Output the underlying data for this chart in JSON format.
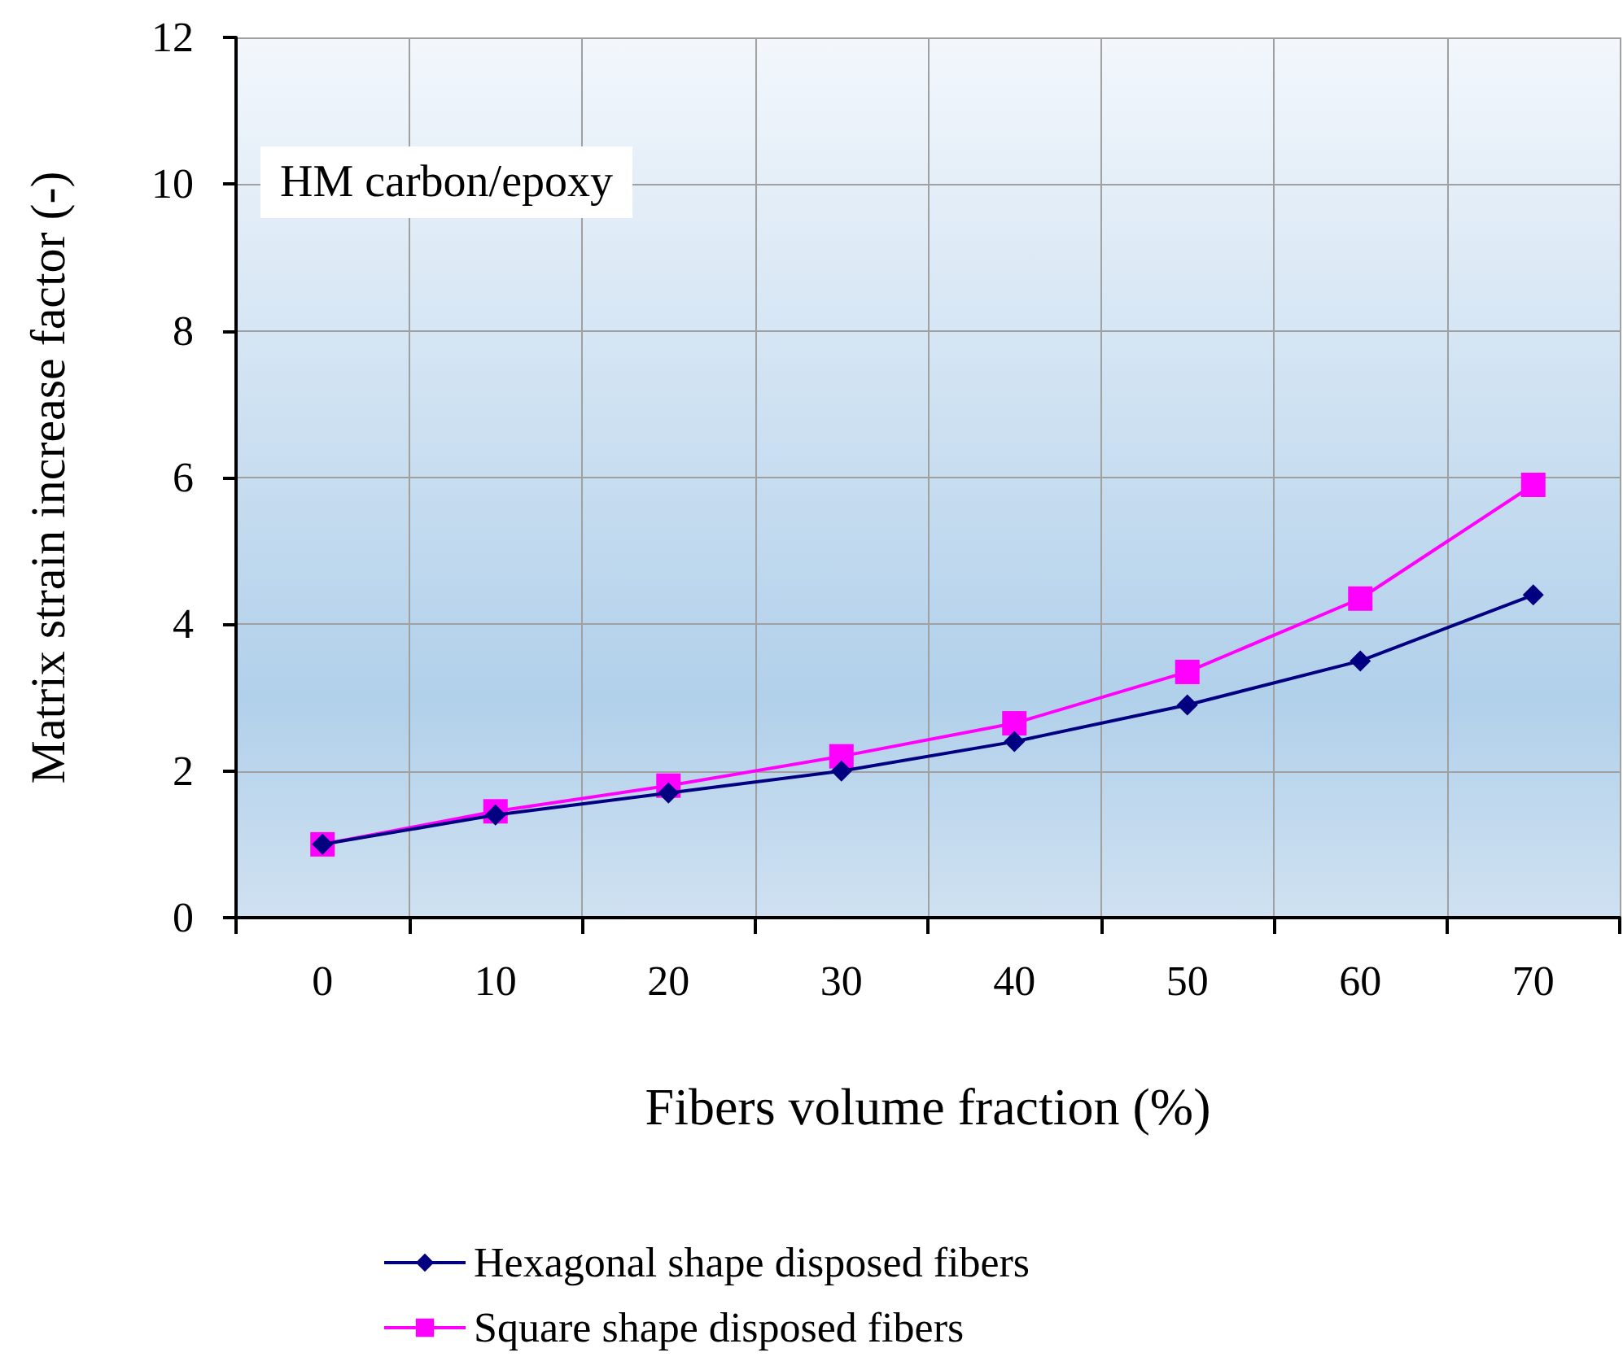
{
  "chart_data": {
    "type": "line",
    "xlabel": "Fibers volume fraction (%)",
    "ylabel": "Matrix strain increase factor (-)",
    "categories": [
      "0",
      "10",
      "20",
      "30",
      "40",
      "50",
      "60",
      "70"
    ],
    "ylim": [
      0,
      12
    ],
    "yticks": [
      0,
      2,
      4,
      6,
      8,
      10,
      12
    ],
    "grid": true,
    "legend": "bottom",
    "annotations": [
      "HM carbon/epoxy"
    ],
    "series": [
      {
        "name": "Hexagonal shape disposed fibers",
        "color": "#000080",
        "marker": "diamond",
        "values": [
          1.0,
          1.4,
          1.7,
          2.0,
          2.4,
          2.9,
          3.5,
          4.4
        ]
      },
      {
        "name": "Square shape disposed fibers",
        "color": "#ff00ff",
        "marker": "square",
        "values": [
          1.0,
          1.45,
          1.8,
          2.2,
          2.65,
          3.35,
          4.35,
          5.9
        ]
      }
    ]
  }
}
